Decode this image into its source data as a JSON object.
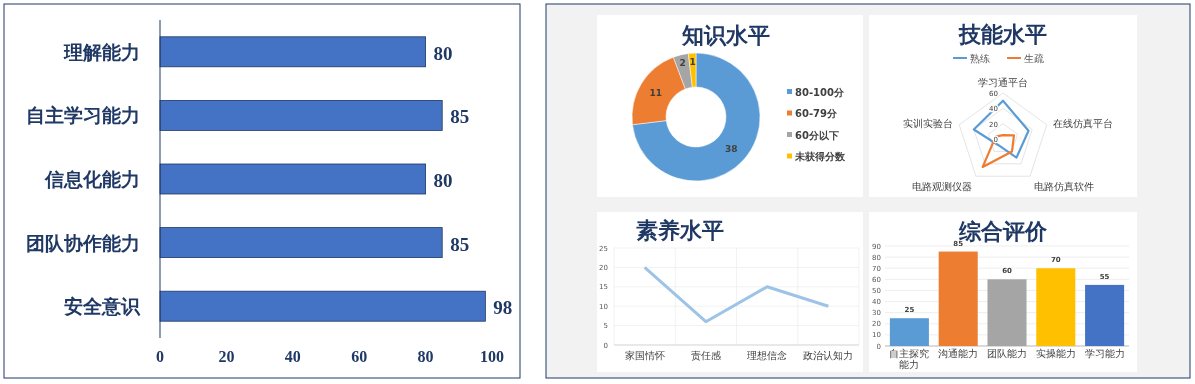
{
  "chart_data": [
    {
      "type": "bar",
      "orientation": "horizontal",
      "categories": [
        "理解能力",
        "自主学习能力",
        "信息化能力",
        "团队协作能力",
        "安全意识"
      ],
      "values": [
        80,
        85,
        80,
        85,
        98
      ],
      "color": "#4472c4",
      "xlim": [
        0,
        100
      ],
      "xticks": [
        0,
        20,
        40,
        60,
        80,
        100
      ],
      "data_labels": true,
      "grid": false
    },
    {
      "type": "donut",
      "title": "知识水平",
      "categories": [
        "80-100分",
        "60-79分",
        "60分以下",
        "未获得分数"
      ],
      "values": [
        38,
        11,
        2,
        1
      ],
      "colors": [
        "#5b9bd5",
        "#ed7d31",
        "#a5a5a5",
        "#ffc000"
      ],
      "data_labels": true,
      "legend": "right"
    },
    {
      "type": "radar",
      "title": "技能水平",
      "categories": [
        "学习通平台",
        "在线仿真平台",
        "电路仿真软件",
        "电路观测仪器",
        "实训实验台"
      ],
      "series": [
        {
          "name": "熟练",
          "color": "#5b9bd5",
          "values": [
            50,
            35,
            30,
            10,
            40
          ]
        },
        {
          "name": "生疏",
          "color": "#ed7d31",
          "values": [
            5,
            15,
            20,
            45,
            10
          ]
        }
      ],
      "ylim": [
        0,
        60
      ],
      "yticks": [
        0,
        20,
        40,
        60
      ],
      "legend": "top"
    },
    {
      "type": "line",
      "title": "素养水平",
      "categories": [
        "家国情怀",
        "责任感",
        "理想信念",
        "政治认知力"
      ],
      "values": [
        20,
        6,
        15,
        10
      ],
      "color": "#9dc3e6",
      "ylim": [
        0,
        25
      ],
      "yticks": [
        0,
        5,
        10,
        15,
        20,
        25
      ],
      "grid": true
    },
    {
      "type": "bar",
      "title": "综合评价",
      "categories": [
        "自主探究能力",
        "沟通能力",
        "团队能力",
        "实操能力",
        "学习能力"
      ],
      "values": [
        25,
        85,
        60,
        70,
        55
      ],
      "colors": [
        "#5b9bd5",
        "#ed7d31",
        "#a5a5a5",
        "#ffc000",
        "#4472c4"
      ],
      "ylim": [
        0,
        90
      ],
      "yticks": [
        0,
        10,
        20,
        30,
        40,
        50,
        60,
        70,
        80,
        90
      ],
      "data_labels": true,
      "grid": "y"
    }
  ]
}
